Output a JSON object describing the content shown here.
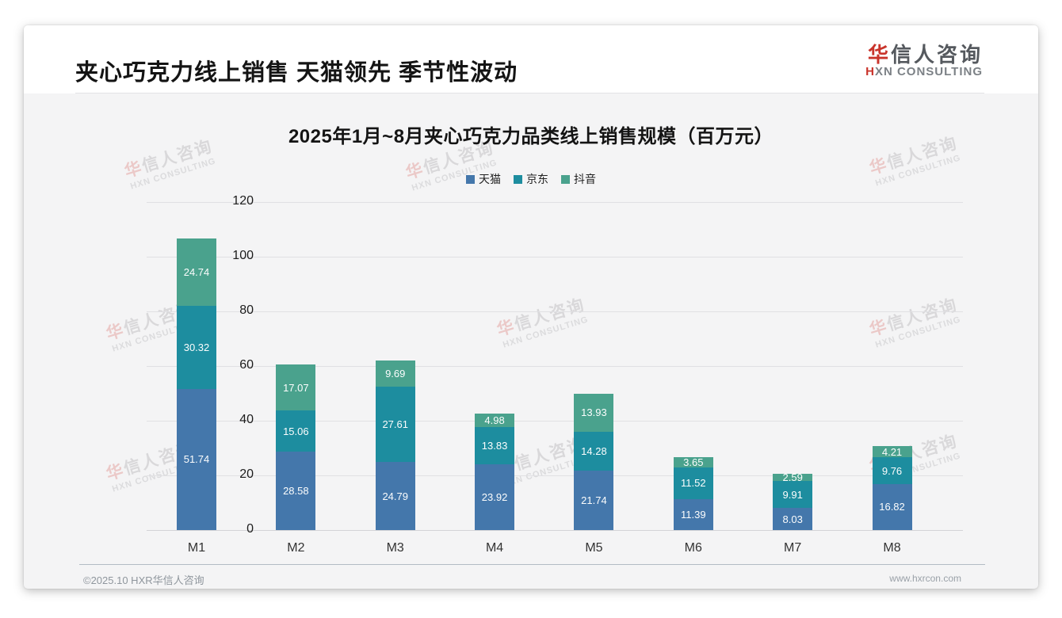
{
  "header": {
    "title": "夹心巧克力线上销售 天猫领先 季节性波动",
    "logo": {
      "cn_first": "华",
      "cn_rest": "信人咨询",
      "en_first": "H",
      "en_rest": "XN CONSULTING"
    }
  },
  "footer": {
    "left": "©2025.10 HXR华信人咨询",
    "right": "www.hxrcon.com"
  },
  "watermark": {
    "cn_first": "华",
    "cn_rest": "信人咨询",
    "en": "HXN CONSULTING"
  },
  "colors": {
    "tmall_blue": "#4477ab",
    "jd_teal": "#1d8d9f",
    "douyin_green": "#4aa28d",
    "logo_red": "#c9342b"
  },
  "chart_data": {
    "type": "bar",
    "stacked": true,
    "title": "2025年1月~8月夹心巧克力品类线上销售规模（百万元）",
    "categories": [
      "M1",
      "M2",
      "M3",
      "M4",
      "M5",
      "M6",
      "M7",
      "M8"
    ],
    "series": [
      {
        "name": "天猫",
        "color": "#4477ab",
        "values": [
          51.74,
          28.58,
          24.79,
          23.92,
          21.74,
          11.39,
          8.03,
          16.82
        ]
      },
      {
        "name": "京东",
        "color": "#1d8d9f",
        "values": [
          30.32,
          15.06,
          27.61,
          13.83,
          14.28,
          11.52,
          9.91,
          9.76
        ]
      },
      {
        "name": "抖音",
        "color": "#4aa28d",
        "values": [
          24.74,
          17.07,
          9.69,
          4.98,
          13.93,
          3.65,
          2.59,
          4.21
        ]
      }
    ],
    "ylim": [
      0,
      120
    ],
    "yticks": [
      0,
      20,
      40,
      60,
      80,
      100,
      120
    ],
    "grid": true,
    "legend_position": "top",
    "value_labels": "inside"
  }
}
